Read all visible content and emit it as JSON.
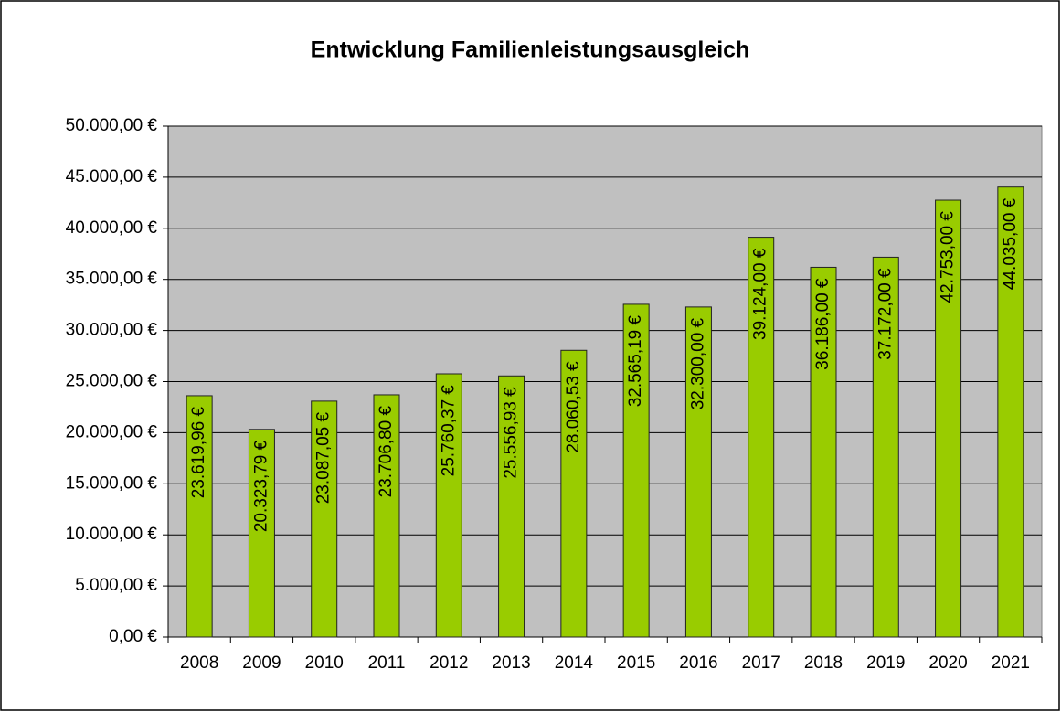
{
  "chart_data": {
    "type": "bar",
    "title": "Entwicklung Familienleistungsausgleich",
    "categories": [
      "2008",
      "2009",
      "2010",
      "2011",
      "2012",
      "2013",
      "2014",
      "2015",
      "2016",
      "2017",
      "2018",
      "2019",
      "2020",
      "2021"
    ],
    "values": [
      23619.96,
      20323.79,
      23087.05,
      23706.8,
      25760.37,
      25556.93,
      28060.53,
      32565.19,
      32300.0,
      39124.0,
      36186.0,
      37172.0,
      42753.0,
      44035.0
    ],
    "value_labels": [
      "23.619,96 €",
      "20.323,79 €",
      "23.087,05 €",
      "23.706,80 €",
      "25.760,37 €",
      "25.556,93 €",
      "28.060,53 €",
      "32.565,19 €",
      "32.300,00 €",
      "39.124,00 €",
      "36.186,00 €",
      "37.172,00 €",
      "42.753,00 €",
      "44.035,00 €"
    ],
    "color": "#99cc00",
    "ylim": [
      0,
      50000
    ],
    "yticks": [
      {
        "value": 0,
        "label": "0,00 €"
      },
      {
        "value": 5000,
        "label": "5.000,00 €"
      },
      {
        "value": 10000,
        "label": "10.000,00 €"
      },
      {
        "value": 15000,
        "label": "15.000,00 €"
      },
      {
        "value": 20000,
        "label": "20.000,00 €"
      },
      {
        "value": 25000,
        "label": "25.000,00 €"
      },
      {
        "value": 30000,
        "label": "30.000,00 €"
      },
      {
        "value": 35000,
        "label": "35.000,00 €"
      },
      {
        "value": 40000,
        "label": "40.000,00 €"
      },
      {
        "value": 45000,
        "label": "45.000,00 €"
      },
      {
        "value": 50000,
        "label": "50.000,00 €"
      }
    ],
    "grid": true
  }
}
